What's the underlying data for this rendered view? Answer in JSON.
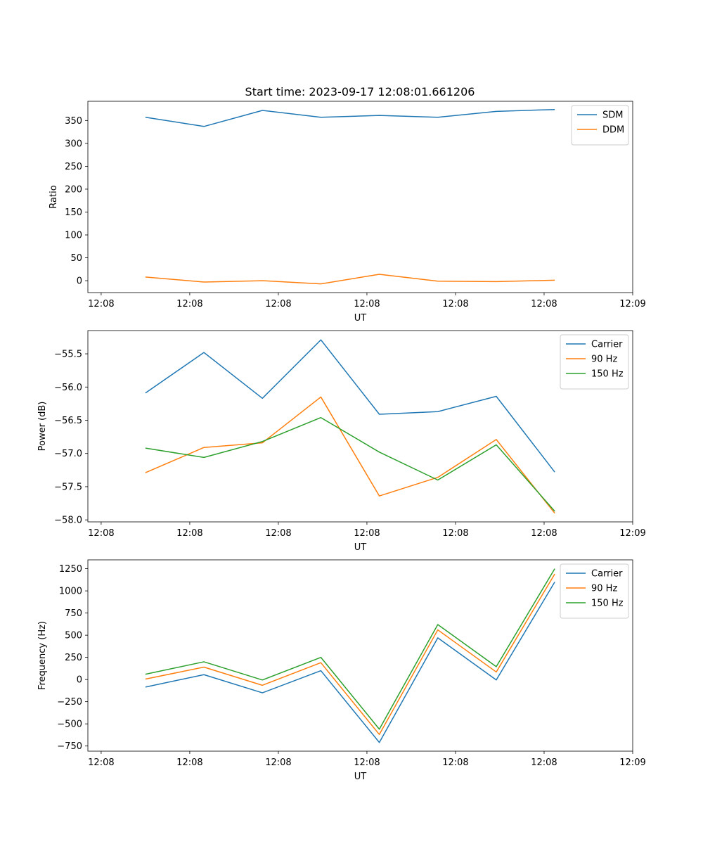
{
  "figure": {
    "title": "Start time: 2023-09-17 12:08:01.661206"
  },
  "chart_data": [
    {
      "type": "line",
      "title": "Start time: 2023-09-17 12:08:01.661206",
      "xlabel": "UT",
      "ylabel": "Ratio",
      "x_tick_labels": [
        "12:08",
        "12:08",
        "12:08",
        "12:08",
        "12:08",
        "12:08",
        "12:09"
      ],
      "x_tick_values": [
        0,
        1,
        2,
        3,
        4,
        5,
        6
      ],
      "xlim": [
        -0.15,
        6.0
      ],
      "x": [
        0.5,
        1.16,
        1.82,
        2.48,
        3.14,
        3.8,
        4.46,
        5.12
      ],
      "y_ticks": [
        0,
        50,
        100,
        150,
        200,
        250,
        300,
        350
      ],
      "ylim": [
        -26,
        392
      ],
      "legend_position": "upper right",
      "series": [
        {
          "name": "SDM",
          "color": "#1f77b4",
          "values": [
            357,
            337,
            372,
            357,
            361,
            357,
            370,
            374
          ]
        },
        {
          "name": "DDM",
          "color": "#ff7f0e",
          "values": [
            8,
            -3,
            0,
            -7,
            14,
            -1,
            -2,
            1
          ]
        }
      ]
    },
    {
      "type": "line",
      "title": "",
      "xlabel": "UT",
      "ylabel": "Power (dB)",
      "x_tick_labels": [
        "12:08",
        "12:08",
        "12:08",
        "12:08",
        "12:08",
        "12:08",
        "12:09"
      ],
      "x_tick_values": [
        0,
        1,
        2,
        3,
        4,
        5,
        6
      ],
      "xlim": [
        -0.15,
        6.0
      ],
      "x": [
        0.5,
        1.16,
        1.82,
        2.48,
        3.14,
        3.8,
        4.46,
        5.12
      ],
      "y_ticks": [
        -58.0,
        -57.5,
        -57.0,
        -56.5,
        -56.0,
        -55.5
      ],
      "y_tick_labels": [
        "−58.0",
        "−57.5",
        "−57.0",
        "−56.5",
        "−56.0",
        "−55.5"
      ],
      "ylim": [
        -58.03,
        -55.15
      ],
      "legend_position": "upper right",
      "series": [
        {
          "name": "Carrier",
          "color": "#1f77b4",
          "values": [
            -56.09,
            -55.48,
            -56.17,
            -55.29,
            -56.41,
            -56.37,
            -56.14,
            -57.28
          ]
        },
        {
          "name": "90 Hz",
          "color": "#ff7f0e",
          "values": [
            -57.29,
            -56.91,
            -56.84,
            -56.15,
            -57.64,
            -57.36,
            -56.79,
            -57.9
          ]
        },
        {
          "name": "150 Hz",
          "color": "#2ca02c",
          "values": [
            -56.92,
            -57.06,
            -56.82,
            -56.46,
            -56.98,
            -57.4,
            -56.87,
            -57.87
          ]
        }
      ]
    },
    {
      "type": "line",
      "title": "",
      "xlabel": "UT",
      "ylabel": "Frequency (Hz)",
      "x_tick_labels": [
        "12:08",
        "12:08",
        "12:08",
        "12:08",
        "12:08",
        "12:08",
        "12:09"
      ],
      "x_tick_values": [
        0,
        1,
        2,
        3,
        4,
        5,
        6
      ],
      "xlim": [
        -0.15,
        6.0
      ],
      "x": [
        0.5,
        1.16,
        1.82,
        2.48,
        3.14,
        3.8,
        4.46,
        5.12
      ],
      "y_ticks": [
        -750,
        -500,
        -250,
        0,
        250,
        500,
        750,
        1000,
        1250
      ],
      "y_tick_labels": [
        "−750",
        "−500",
        "−250",
        "0",
        "250",
        "500",
        "750",
        "1000",
        "1250"
      ],
      "ylim": [
        -808,
        1350
      ],
      "legend_position": "upper right",
      "series": [
        {
          "name": "Carrier",
          "color": "#1f77b4",
          "values": [
            -85,
            55,
            -150,
            100,
            -710,
            470,
            -5,
            1100
          ]
        },
        {
          "name": "90 Hz",
          "color": "#ff7f0e",
          "values": [
            5,
            140,
            -65,
            190,
            -620,
            560,
            85,
            1190
          ]
        },
        {
          "name": "150 Hz",
          "color": "#2ca02c",
          "values": [
            60,
            200,
            -5,
            250,
            -560,
            620,
            145,
            1250
          ]
        }
      ]
    }
  ]
}
